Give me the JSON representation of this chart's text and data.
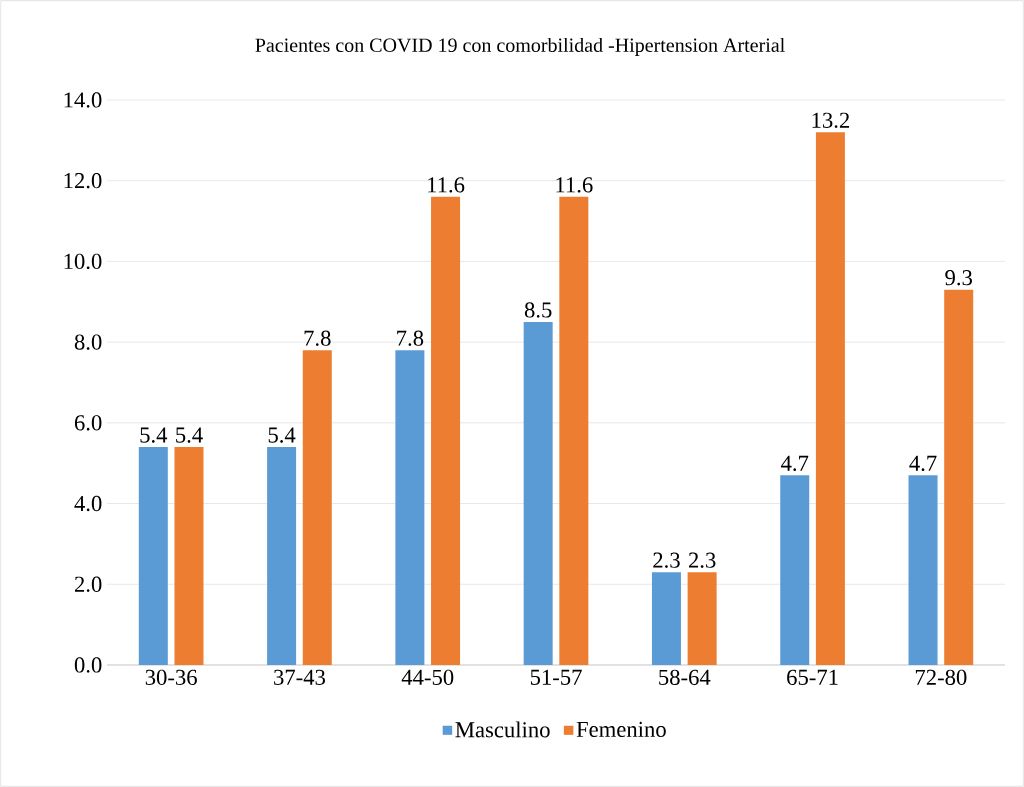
{
  "chart_data": {
    "type": "bar",
    "title": "Pacientes con COVID 19 con  comorbilidad -Hipertension Arterial",
    "categories": [
      "30-36",
      "37-43",
      "44-50",
      "51-57",
      "58-64",
      "65-71",
      "72-80"
    ],
    "series": [
      {
        "name": "Masculino",
        "color": "#5b9bd5",
        "values": [
          5.4,
          5.4,
          7.8,
          8.5,
          2.3,
          4.7,
          4.7
        ]
      },
      {
        "name": "Femenino",
        "color": "#ed7d31",
        "values": [
          5.4,
          7.8,
          11.6,
          11.6,
          2.3,
          13.2,
          9.3
        ]
      }
    ],
    "ylim": [
      0,
      14
    ],
    "yticks": [
      {
        "value": 0,
        "label": "0.0"
      },
      {
        "value": 2,
        "label": "2.0"
      },
      {
        "value": 4,
        "label": "4.0"
      },
      {
        "value": 6,
        "label": "6.0"
      },
      {
        "value": 8,
        "label": "8.0"
      },
      {
        "value": 10,
        "label": "10.0"
      },
      {
        "value": 12,
        "label": "12.0"
      },
      {
        "value": 14,
        "label": "14.0"
      }
    ],
    "grid": "y",
    "legend": "bottom",
    "data_labels": true
  }
}
